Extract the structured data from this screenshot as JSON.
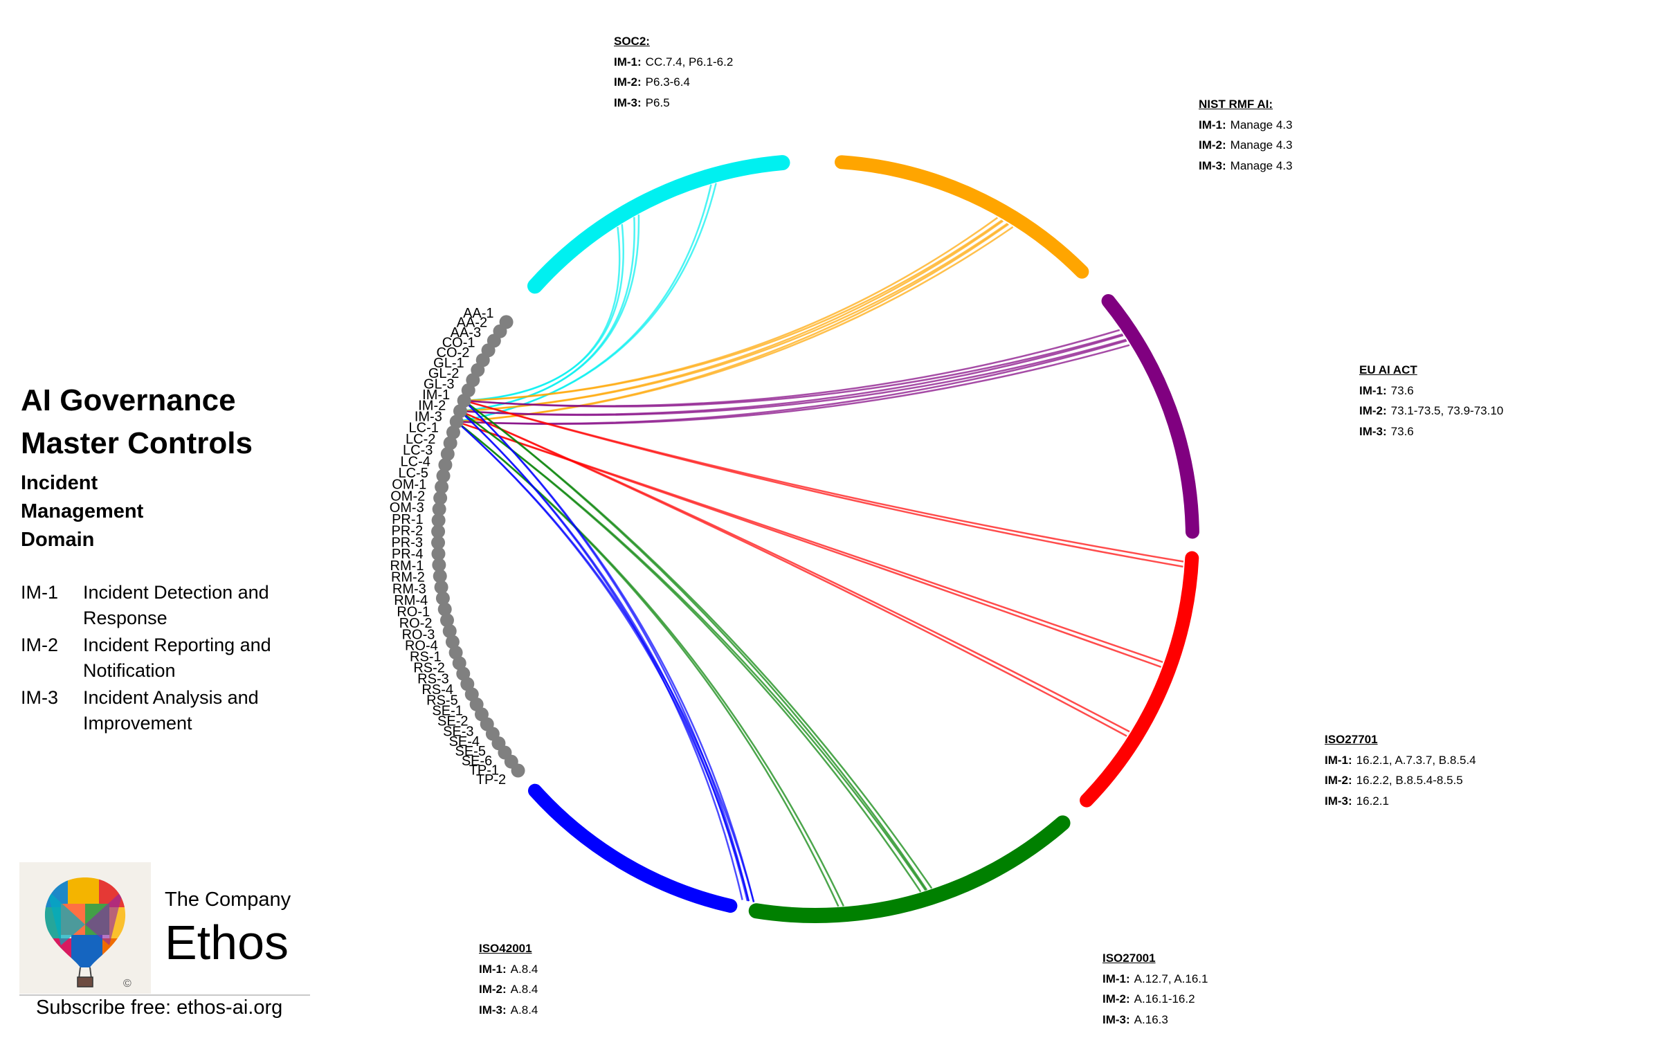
{
  "title": [
    "AI Governance",
    "Master Controls"
  ],
  "subtitle": [
    "Incident",
    "Management",
    "Domain"
  ],
  "legend": [
    {
      "code": "IM-1",
      "desc": "Incident Detection and Response"
    },
    {
      "code": "IM-2",
      "desc": "Incident Reporting and Notification"
    },
    {
      "code": "IM-3",
      "desc": "Incident Analysis and Improvement"
    }
  ],
  "controls": [
    "AA-1",
    "AA-2",
    "AA-3",
    "CO-1",
    "CO-2",
    "GL-1",
    "GL-2",
    "GL-3",
    "IM-1",
    "IM-2",
    "IM-3",
    "LC-1",
    "LC-2",
    "LC-3",
    "LC-4",
    "LC-5",
    "OM-1",
    "OM-2",
    "OM-3",
    "PR-1",
    "PR-2",
    "PR-3",
    "PR-4",
    "RM-1",
    "RM-2",
    "RM-3",
    "RM-4",
    "RO-1",
    "RO-2",
    "RO-3",
    "RO-4",
    "RS-1",
    "RS-2",
    "RS-3",
    "RS-4",
    "RS-5",
    "SE-1",
    "SE-2",
    "SE-3",
    "SE-4",
    "SE-5",
    "SE-6",
    "TP-1",
    "TP-2"
  ],
  "node_color": "#808080",
  "standards": [
    {
      "id": "soc2",
      "title": "SOC2:",
      "color": "#00f0f0",
      "mappings": [
        {
          "k": "IM-1:",
          "v": "CC.7.4,  P6.1-6.2"
        },
        {
          "k": "IM-2:",
          "v": "P6.3-6.4"
        },
        {
          "k": "IM-3:",
          "v": "P6.5"
        }
      ]
    },
    {
      "id": "nist",
      "title": "NIST RMF AI:",
      "color": "#ffa500",
      "mappings": [
        {
          "k": "IM-1:",
          "v": "Manage 4.3"
        },
        {
          "k": "IM-2:",
          "v": "Manage 4.3"
        },
        {
          "k": "IM-3:",
          "v": "Manage 4.3"
        }
      ]
    },
    {
      "id": "euai",
      "title": "EU AI ACT",
      "color": "#800080",
      "mappings": [
        {
          "k": "IM-1:",
          "v": "73.6"
        },
        {
          "k": "IM-2:",
          "v": "73.1-73.5,  73.9-73.10"
        },
        {
          "k": "IM-3:",
          "v": "73.6"
        }
      ]
    },
    {
      "id": "iso27701",
      "title": "ISO27701",
      "color": "#ff0000",
      "mappings": [
        {
          "k": "IM-1:",
          "v": "16.2.1, A.7.3.7, B.8.5.4"
        },
        {
          "k": "IM-2:",
          "v": "16.2.2,  B.8.5.4-8.5.5"
        },
        {
          "k": "IM-3:",
          "v": "16.2.1"
        }
      ]
    },
    {
      "id": "iso27001",
      "title": "ISO27001",
      "color": "#008000",
      "mappings": [
        {
          "k": "IM-1:",
          "v": "A.12.7,  A.16.1"
        },
        {
          "k": "IM-2:",
          "v": "A.16.1-16.2"
        },
        {
          "k": "IM-3:",
          "v": "A.16.3"
        }
      ]
    },
    {
      "id": "iso42001",
      "title": "ISO42001",
      "color": "#0000ff",
      "mappings": [
        {
          "k": "IM-1:",
          "v": "A.8.4"
        },
        {
          "k": "IM-2:",
          "v": "A.8.4"
        },
        {
          "k": "IM-3:",
          "v": "A.8.4"
        }
      ]
    }
  ],
  "company": {
    "small": "The Company",
    "big": "Ethos",
    "copyright": "©"
  },
  "subscribe": "Subscribe free: ethos-ai.org"
}
